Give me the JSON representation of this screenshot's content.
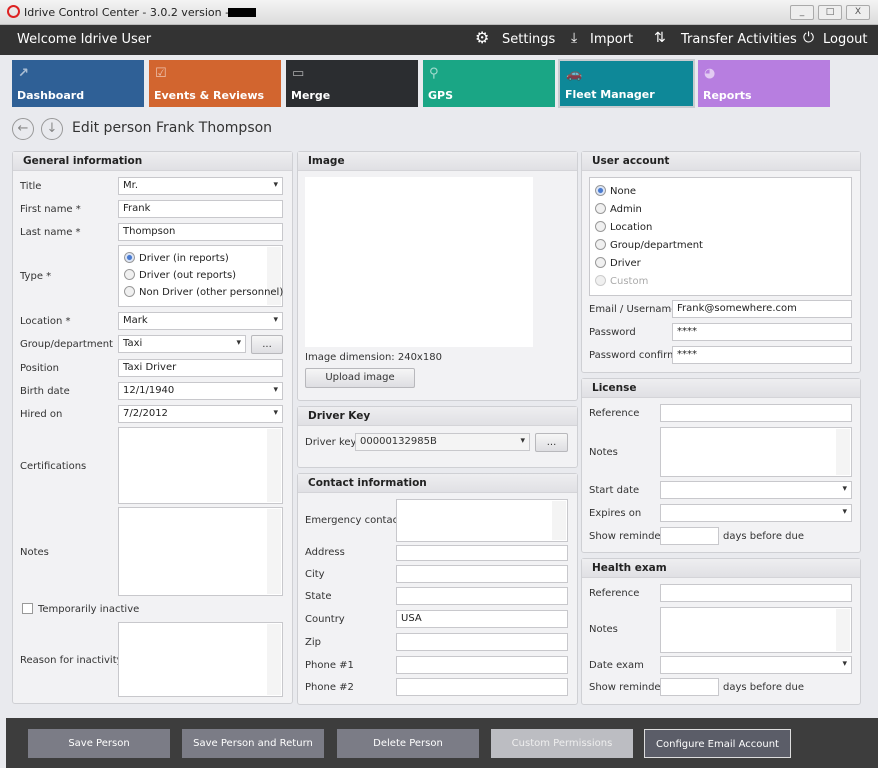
{
  "window": {
    "title": "Idrive Control Center - 3.0.2 version -",
    "minimize": "_",
    "maximize": "□",
    "close": "X"
  },
  "header": {
    "welcome": "Welcome Idrive User",
    "settings": "Settings",
    "import": "Import",
    "transfer": "Transfer Activities",
    "logout": "Logout"
  },
  "tiles": [
    {
      "label": "Dashboard",
      "color": "#2f6096"
    },
    {
      "label": "Events & Reviews",
      "color": "#d2652f"
    },
    {
      "label": "Merge",
      "color": "#2b2d30"
    },
    {
      "label": "GPS",
      "color": "#1aa685"
    },
    {
      "label": "Fleet Manager",
      "color": "#0e8898"
    },
    {
      "label": "Reports",
      "color": "#b77ee0"
    }
  ],
  "page": {
    "title": "Edit person Frank Thompson"
  },
  "general": {
    "header": "General information",
    "title_label": "Title",
    "title_value": "Mr.",
    "first_label": "First name *",
    "first_value": "Frank",
    "last_label": "Last name *",
    "last_value": "Thompson",
    "type_label": "Type *",
    "type_options": [
      "Driver (in reports)",
      "Driver (out reports)",
      "Non Driver (other personnel)"
    ],
    "type_selected": "Driver (in reports)",
    "location_label": "Location *",
    "location_value": "Mark",
    "group_label": "Group/department",
    "group_value": "Taxi",
    "group_button": "...",
    "position_label": "Position",
    "position_value": "Taxi Driver",
    "birth_label": "Birth date",
    "birth_value": "12/1/1940",
    "hired_label": "Hired on",
    "hired_value": "7/2/2012",
    "cert_label": "Certifications",
    "notes_label": "Notes",
    "inactive_label": "Temporarily inactive",
    "reason_label": "Reason for inactivity"
  },
  "image": {
    "header": "Image",
    "dimension": "Image dimension:  240x180",
    "upload": "Upload image"
  },
  "driver_key": {
    "header": "Driver Key",
    "label": "Driver key",
    "value": "00000132985B",
    "button": "..."
  },
  "contact": {
    "header": "Contact information",
    "emergency": "Emergency contact",
    "address": "Address",
    "city": "City",
    "state": "State",
    "country": "Country",
    "country_value": "USA",
    "zip": "Zip",
    "phone1": "Phone #1",
    "phone2": "Phone #2"
  },
  "account": {
    "header": "User account",
    "options": [
      "None",
      "Admin",
      "Location",
      "Group/department",
      "Driver",
      "Custom"
    ],
    "selected": "None",
    "email_label": "Email / Username",
    "email_value": "Frank@somewhere.com",
    "password_label": "Password",
    "password_value": "****",
    "confirm_label": "Password confirm",
    "confirm_value": "****"
  },
  "license": {
    "header": "License",
    "reference": "Reference",
    "notes": "Notes",
    "start": "Start date",
    "expires": "Expires on",
    "reminder": "Show reminder",
    "days": "days before due"
  },
  "health": {
    "header": "Health exam",
    "reference": "Reference",
    "notes": "Notes",
    "date": "Date exam",
    "reminder": "Show reminder",
    "days": "days before due"
  },
  "footer": {
    "save": "Save Person",
    "save_return": "Save Person and Return",
    "delete": "Delete Person",
    "custom": "Custom Permissions",
    "email": "Configure Email Account"
  }
}
